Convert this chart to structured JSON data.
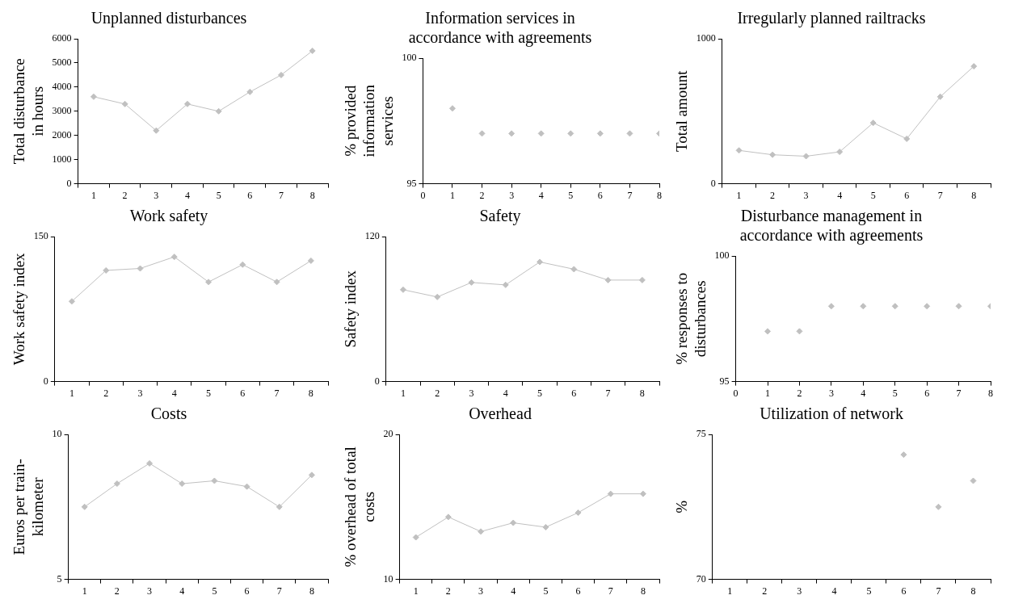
{
  "chart_data": [
    {
      "type": "line",
      "title": "Unplanned disturbances",
      "ylabel": "Total disturbance in hours",
      "categories": [
        "1",
        "2",
        "3",
        "4",
        "5",
        "6",
        "7",
        "8"
      ],
      "values": [
        3600,
        3300,
        2200,
        3300,
        3000,
        3800,
        4500,
        5500
      ],
      "color": "#c0c0c0",
      "ylim": [
        0,
        6000
      ],
      "yticks": [
        0,
        1000,
        2000,
        3000,
        4000,
        5000,
        6000
      ],
      "marker": "diamond"
    },
    {
      "type": "scatter",
      "title": "Information services in accordance with agreements",
      "ylabel": "% provided information services",
      "x": [
        1,
        2,
        3,
        4,
        5,
        6,
        7,
        8
      ],
      "values": [
        98,
        97,
        97,
        97,
        97,
        97,
        97,
        97
      ],
      "color": "#c0c0c0",
      "xlim": [
        0,
        8
      ],
      "xticks": [
        0,
        1,
        2,
        3,
        4,
        5,
        6,
        7,
        8
      ],
      "ylim": [
        95,
        100
      ],
      "yticks": [
        95,
        100
      ],
      "marker": "diamond"
    },
    {
      "type": "line",
      "title": "Irregularly planned railtracks",
      "ylabel": "Total amount",
      "categories": [
        "1",
        "2",
        "3",
        "4",
        "5",
        "6",
        "7",
        "8"
      ],
      "values": [
        230,
        200,
        190,
        220,
        420,
        310,
        600,
        810
      ],
      "color": "#c0c0c0",
      "ylim": [
        0,
        1000
      ],
      "yticks": [
        0,
        1000
      ],
      "marker": "diamond"
    },
    {
      "type": "line",
      "title": "Work safety",
      "ylabel": "Work safety index",
      "categories": [
        "1",
        "2",
        "3",
        "4",
        "5",
        "6",
        "7",
        "8"
      ],
      "values": [
        83,
        115,
        117,
        129,
        103,
        121,
        103,
        125
      ],
      "color": "#c0c0c0",
      "ylim": [
        0,
        150
      ],
      "yticks": [
        0,
        150
      ],
      "marker": "diamond"
    },
    {
      "type": "line",
      "title": "Safety",
      "ylabel": "Safety index",
      "categories": [
        "1",
        "2",
        "3",
        "4",
        "5",
        "6",
        "7",
        "8"
      ],
      "values": [
        76,
        70,
        82,
        80,
        99,
        93,
        84,
        84
      ],
      "color": "#c0c0c0",
      "ylim": [
        0,
        120
      ],
      "yticks": [
        0,
        120
      ],
      "marker": "diamond"
    },
    {
      "type": "scatter",
      "title": "Disturbance management in accordance with agreements",
      "ylabel": "% responses to disturbances",
      "x": [
        1,
        2,
        3,
        4,
        5,
        6,
        7,
        8
      ],
      "values": [
        97,
        97,
        98,
        98,
        98,
        98,
        98,
        98
      ],
      "color": "#c0c0c0",
      "xlim": [
        0,
        8
      ],
      "xticks": [
        0,
        1,
        2,
        3,
        4,
        5,
        6,
        7,
        8
      ],
      "ylim": [
        95,
        100
      ],
      "yticks": [
        95,
        100
      ],
      "marker": "diamond"
    },
    {
      "type": "line",
      "title": "Costs",
      "ylabel": "Euros per train-kilometer",
      "categories": [
        "1",
        "2",
        "3",
        "4",
        "5",
        "6",
        "7",
        "8"
      ],
      "values": [
        7.5,
        8.3,
        9.0,
        8.3,
        8.4,
        8.2,
        7.5,
        8.6
      ],
      "color": "#c0c0c0",
      "ylim": [
        5,
        10
      ],
      "yticks": [
        5,
        10
      ],
      "marker": "diamond"
    },
    {
      "type": "line",
      "title": "Overhead",
      "ylabel": "% overhead of total costs",
      "categories": [
        "1",
        "2",
        "3",
        "4",
        "5",
        "6",
        "7",
        "8"
      ],
      "values": [
        12.9,
        14.3,
        13.3,
        13.9,
        13.6,
        14.6,
        15.9,
        15.9
      ],
      "color": "#c0c0c0",
      "ylim": [
        10,
        20
      ],
      "yticks": [
        10,
        20
      ],
      "marker": "diamond"
    },
    {
      "type": "scatter",
      "title": "Utilization of network",
      "ylabel": "%",
      "categories": [
        "1",
        "2",
        "3",
        "4",
        "5",
        "6",
        "7",
        "8"
      ],
      "values": [
        null,
        null,
        null,
        null,
        null,
        74.3,
        72.5,
        73.4
      ],
      "color": "#c0c0c0",
      "ylim": [
        70,
        75
      ],
      "yticks": [
        70,
        75
      ],
      "marker": "diamond"
    }
  ]
}
